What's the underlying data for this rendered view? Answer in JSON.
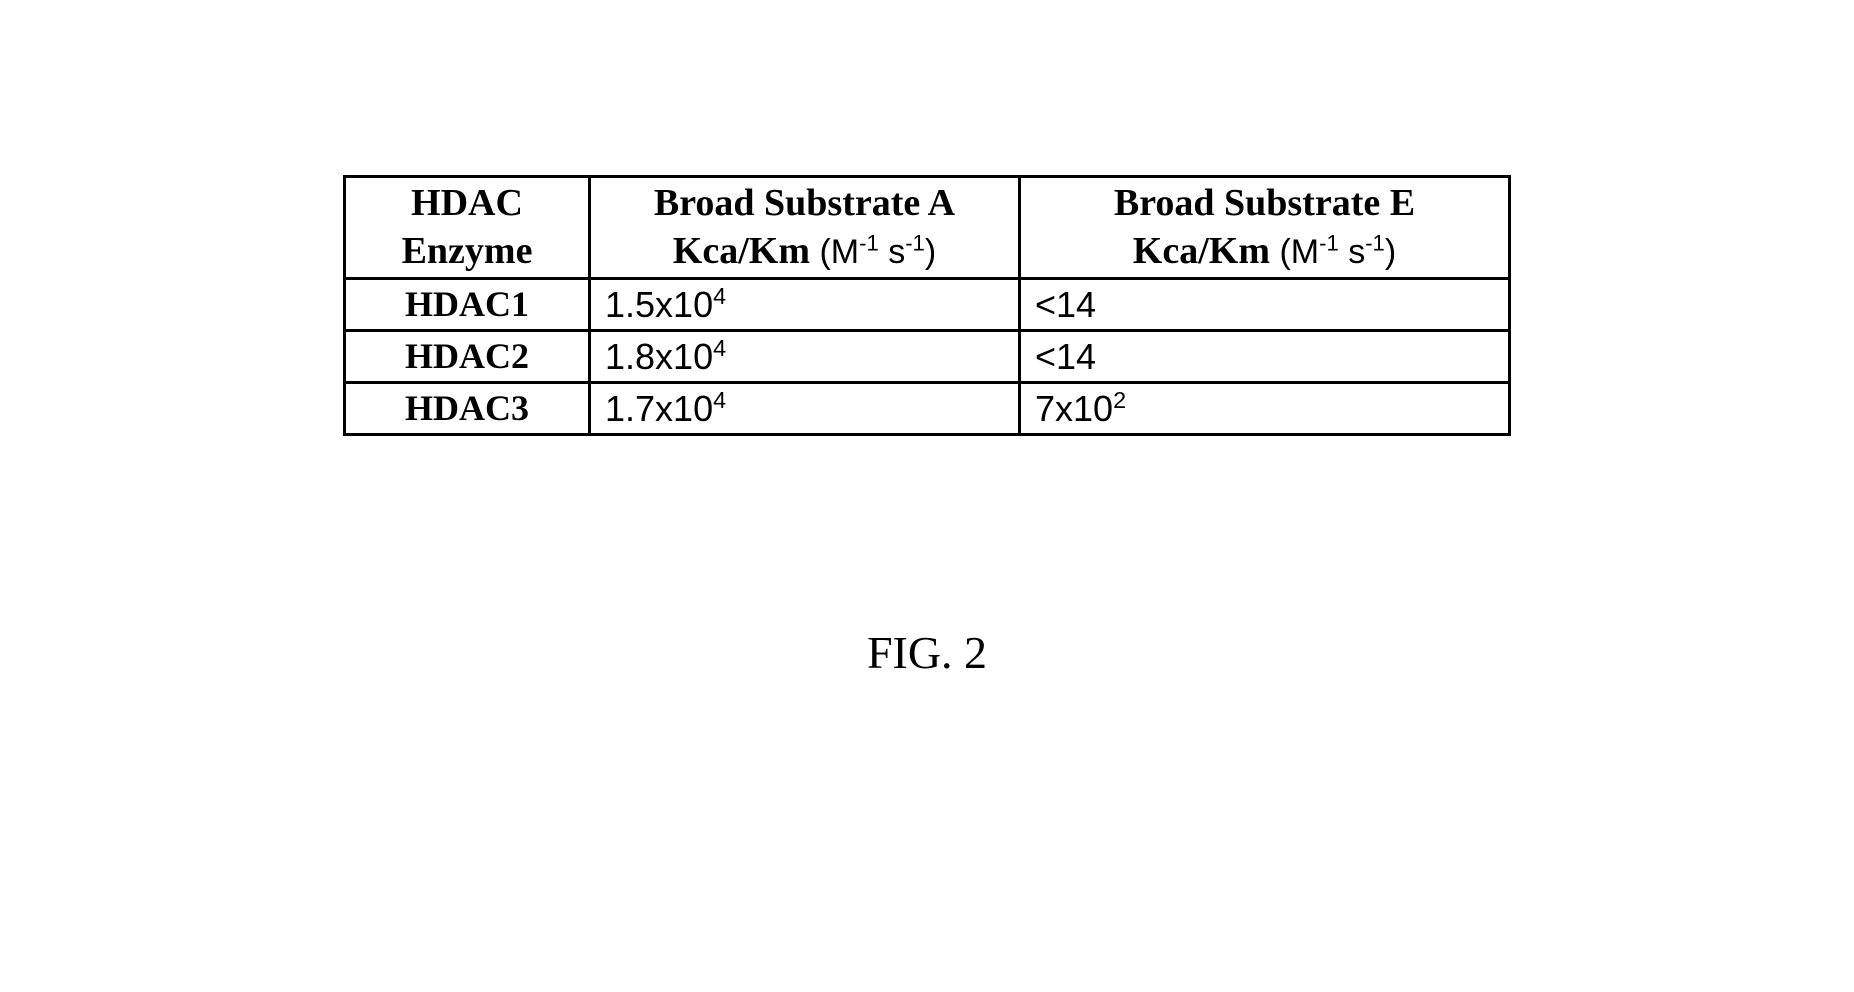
{
  "table": {
    "columns": {
      "enzyme": {
        "line1": "HDAC",
        "line2": "Enzyme"
      },
      "substrate_a": {
        "line1": "Broad Substrate A",
        "line2_bold": "Kca/Km",
        "units_pre": " (M",
        "units_sup1": "-1",
        "units_mid": " s",
        "units_sup2": "-1",
        "units_post": ")"
      },
      "substrate_e": {
        "line1": "Broad Substrate E",
        "line2_bold": "Kca/Km",
        "units_pre": " (M",
        "units_sup1": "-1",
        "units_mid": " s",
        "units_sup2": "-1",
        "units_post": ")"
      }
    },
    "rows": [
      {
        "enzyme": "HDAC1",
        "a_base": "1.5x10",
        "a_exp": "4",
        "e_base": "<14",
        "e_exp": ""
      },
      {
        "enzyme": "HDAC2",
        "a_base": "1.8x10",
        "a_exp": "4",
        "e_base": "<14",
        "e_exp": ""
      },
      {
        "enzyme": "HDAC3",
        "a_base": "1.7x10",
        "a_exp": "4",
        "e_base": "7x10",
        "e_exp": "2"
      }
    ],
    "border_color": "#000000",
    "background_color": "#ffffff"
  },
  "caption": "FIG. 2"
}
